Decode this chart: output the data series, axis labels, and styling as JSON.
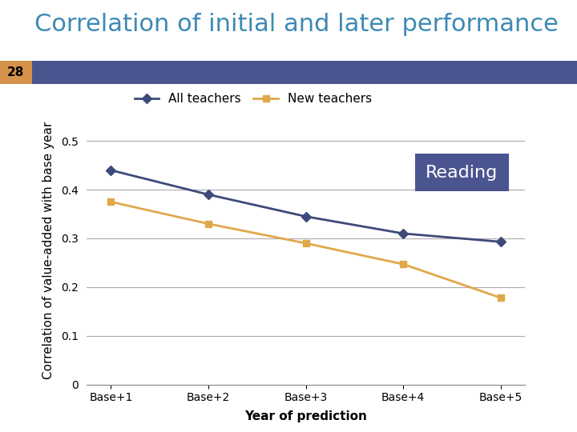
{
  "title": "Correlation of initial and later performance",
  "slide_number": "28",
  "subtitle": "Reading",
  "xlabel": "Year of prediction",
  "ylabel": "Correlation of value-added with base year",
  "categories": [
    "Base+1",
    "Base+2",
    "Base+3",
    "Base+4",
    "Base+5"
  ],
  "all_teachers": [
    0.44,
    0.39,
    0.345,
    0.31,
    0.293
  ],
  "new_teachers": [
    0.375,
    0.33,
    0.29,
    0.247,
    0.178
  ],
  "all_color": "#3d4a7a",
  "new_color": "#e0a84a",
  "title_color": "#3d8ab5",
  "bar_bg_color": "#4a5590",
  "bar_number_bg": "#d4924a",
  "reading_box_color": "#4a5590",
  "ylim": [
    0,
    0.55
  ],
  "yticks": [
    0,
    0.1,
    0.2,
    0.3,
    0.4,
    0.5
  ],
  "legend_labels": [
    "All teachers",
    "New teachers"
  ],
  "title_fontsize": 22,
  "axis_label_fontsize": 11,
  "tick_fontsize": 10,
  "legend_fontsize": 11
}
